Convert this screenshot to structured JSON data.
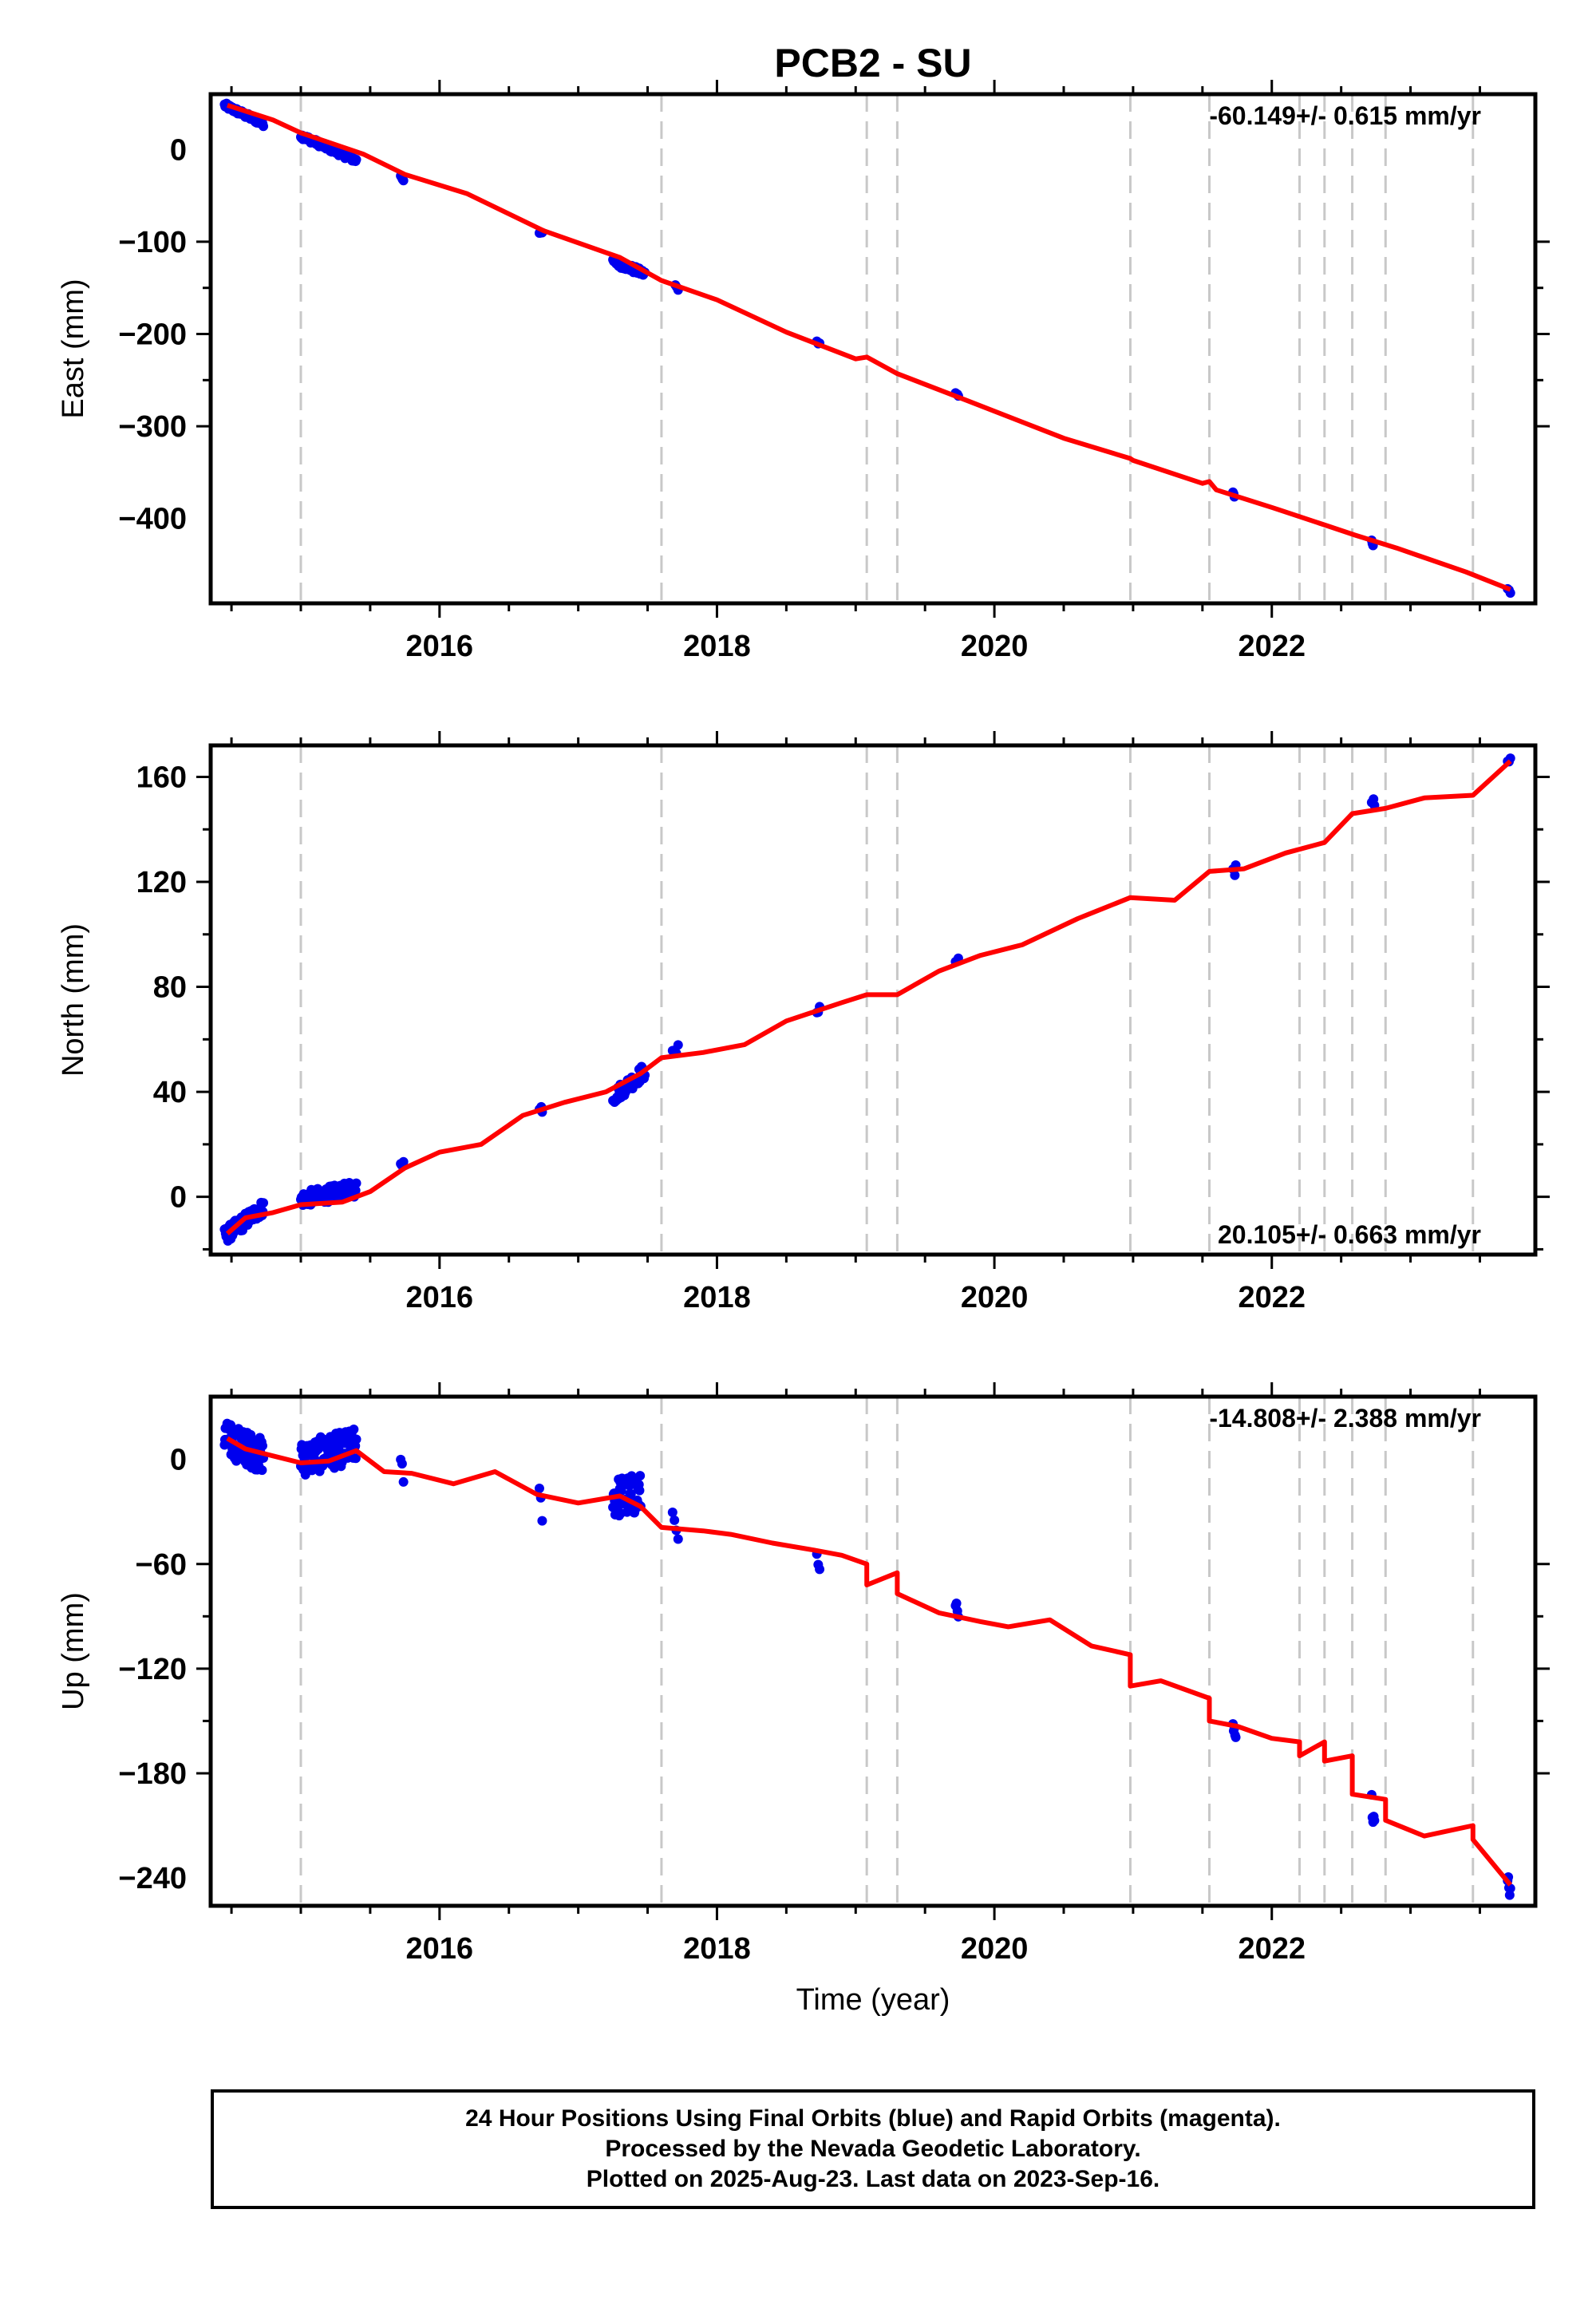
{
  "chart_data": {
    "title": "PCB2 - SU",
    "colors": {
      "data": "#0000ee",
      "model": "#ff0000",
      "events": "#c8c8c8",
      "frame": "#000000"
    },
    "x_axis": {
      "label": "Time (year)",
      "range": [
        2014.35,
        2023.9
      ],
      "ticks": [
        2016,
        2018,
        2020,
        2022
      ],
      "tick_labels": [
        "2016",
        "2018",
        "2020",
        "2022"
      ]
    },
    "event_lines": [
      2015.0,
      2017.6,
      2019.08,
      2019.3,
      2020.98,
      2021.55,
      2022.2,
      2022.38,
      2022.58,
      2022.82,
      2023.45
    ],
    "panels": [
      {
        "type": "scatter",
        "component": "east",
        "ylabel": "East (mm)",
        "ylim": [
          -492,
          60
        ],
        "yticks": [
          0,
          -100,
          -200,
          -300,
          -400
        ],
        "ytick_labels": [
          "0",
          "−100",
          "−200",
          "−300",
          "−400"
        ],
        "rate_label": "-60.149+/- 0.615 mm/yr",
        "rate_position": "top-right",
        "model": {
          "x": [
            2014.47,
            2014.8,
            2015.0,
            2015.45,
            2015.75,
            2016.2,
            2016.75,
            2017.3,
            2017.6,
            2018.0,
            2018.5,
            2019.0,
            2019.08,
            2019.3,
            2019.8,
            2020.5,
            2020.98,
            2021.0,
            2021.5,
            2021.55,
            2021.6,
            2022.0,
            2022.4,
            2022.6,
            2022.9,
            2023.4,
            2023.72
          ],
          "y": [
            48,
            32,
            18,
            -5,
            -27,
            -48,
            -88,
            -117,
            -142,
            -163,
            -198,
            -227,
            -225,
            -243,
            -272,
            -313,
            -335,
            -337,
            -362,
            -360,
            -369,
            -388,
            -408,
            -418,
            -432,
            -458,
            -477
          ]
        },
        "observations": [
          {
            "t_start": 2014.45,
            "t_end": 2014.73,
            "y_start": 48,
            "y_end": 28,
            "n": 60,
            "spread": 3
          },
          {
            "t_start": 2015.0,
            "t_end": 2015.4,
            "y_start": 15,
            "y_end": -12,
            "n": 80,
            "spread": 3
          },
          {
            "t_start": 2015.72,
            "t_end": 2015.74,
            "y_start": -28,
            "y_end": -33,
            "n": 4,
            "spread": 2
          },
          {
            "t_start": 2016.72,
            "t_end": 2016.74,
            "y_start": -89,
            "y_end": -92,
            "n": 3,
            "spread": 2
          },
          {
            "t_start": 2017.25,
            "t_end": 2017.48,
            "y_start": -121,
            "y_end": -135,
            "n": 40,
            "spread": 4
          },
          {
            "t_start": 2017.7,
            "t_end": 2017.72,
            "y_start": -147,
            "y_end": -153,
            "n": 3,
            "spread": 2
          },
          {
            "t_start": 2018.72,
            "t_end": 2018.74,
            "y_start": -207,
            "y_end": -211,
            "n": 3,
            "spread": 2
          },
          {
            "t_start": 2019.72,
            "t_end": 2019.74,
            "y_start": -262,
            "y_end": -267,
            "n": 4,
            "spread": 2
          },
          {
            "t_start": 2021.72,
            "t_end": 2021.73,
            "y_start": -371,
            "y_end": -377,
            "n": 3,
            "spread": 2
          },
          {
            "t_start": 2022.72,
            "t_end": 2022.73,
            "y_start": -424,
            "y_end": -429,
            "n": 3,
            "spread": 2
          },
          {
            "t_start": 2023.7,
            "t_end": 2023.72,
            "y_start": -476,
            "y_end": -480,
            "n": 3,
            "spread": 2
          }
        ]
      },
      {
        "type": "scatter",
        "component": "north",
        "ylabel": "North (mm)",
        "ylim": [
          -22,
          172
        ],
        "yticks": [
          0,
          40,
          80,
          120,
          160
        ],
        "ytick_labels": [
          "0",
          "40",
          "80",
          "120",
          "160"
        ],
        "rate_label": "20.105+/- 0.663 mm/yr",
        "rate_position": "bottom-right",
        "model": {
          "x": [
            2014.47,
            2014.6,
            2014.8,
            2015.0,
            2015.3,
            2015.5,
            2015.75,
            2016.0,
            2016.3,
            2016.6,
            2016.9,
            2017.2,
            2017.45,
            2017.6,
            2017.9,
            2018.2,
            2018.5,
            2018.9,
            2019.08,
            2019.3,
            2019.6,
            2019.9,
            2020.2,
            2020.6,
            2020.98,
            2021.3,
            2021.55,
            2021.8,
            2022.1,
            2022.38,
            2022.58,
            2022.82,
            2023.1,
            2023.45,
            2023.72
          ],
          "y": [
            -14,
            -8,
            -6,
            -3,
            -2,
            2,
            11,
            17,
            20,
            31,
            36,
            40,
            47,
            53,
            55,
            58,
            67,
            74,
            77,
            77,
            86,
            92,
            96,
            106,
            114,
            113,
            124,
            125,
            131,
            135,
            146,
            148,
            152,
            153,
            166
          ]
        },
        "observations": [
          {
            "t_start": 2014.45,
            "t_end": 2014.73,
            "y_start": -15,
            "y_end": -4,
            "n": 70,
            "spread": 3
          },
          {
            "t_start": 2015.0,
            "t_end": 2015.4,
            "y_start": -1,
            "y_end": 3,
            "n": 80,
            "spread": 3
          },
          {
            "t_start": 2015.72,
            "t_end": 2015.74,
            "y_start": 12,
            "y_end": 15,
            "n": 4,
            "spread": 2
          },
          {
            "t_start": 2016.72,
            "t_end": 2016.74,
            "y_start": 33,
            "y_end": 34,
            "n": 4,
            "spread": 2
          },
          {
            "t_start": 2017.25,
            "t_end": 2017.48,
            "y_start": 38,
            "y_end": 48,
            "n": 40,
            "spread": 3
          },
          {
            "t_start": 2017.68,
            "t_end": 2017.72,
            "y_start": 54,
            "y_end": 56,
            "n": 4,
            "spread": 2
          },
          {
            "t_start": 2018.72,
            "t_end": 2018.74,
            "y_start": 71,
            "y_end": 73,
            "n": 3,
            "spread": 2
          },
          {
            "t_start": 2019.72,
            "t_end": 2019.74,
            "y_start": 89,
            "y_end": 91,
            "n": 4,
            "spread": 2
          },
          {
            "t_start": 2021.72,
            "t_end": 2021.74,
            "y_start": 124,
            "y_end": 126,
            "n": 4,
            "spread": 3
          },
          {
            "t_start": 2022.72,
            "t_end": 2022.74,
            "y_start": 148,
            "y_end": 150,
            "n": 4,
            "spread": 3
          },
          {
            "t_start": 2023.7,
            "t_end": 2023.72,
            "y_start": 166,
            "y_end": 167,
            "n": 3,
            "spread": 1
          }
        ]
      },
      {
        "type": "scatter",
        "component": "up",
        "ylabel": "Up (mm)",
        "ylim": [
          -256,
          36
        ],
        "yticks": [
          0,
          -60,
          -120,
          -180,
          -240
        ],
        "ytick_labels": [
          "0",
          "−60",
          "−120",
          "−180",
          "−240"
        ],
        "rate_label": "-14.808+/- 2.388 mm/yr",
        "rate_position": "top-right",
        "model": {
          "x": [
            2014.47,
            2014.6,
            2014.8,
            2015.0,
            2015.2,
            2015.4,
            2015.6,
            2015.8,
            2016.1,
            2016.4,
            2016.7,
            2017.0,
            2017.3,
            2017.45,
            2017.6,
            2017.9,
            2018.1,
            2018.4,
            2018.7,
            2018.9,
            2019.08,
            2019.08,
            2019.3,
            2019.3,
            2019.6,
            2019.9,
            2020.1,
            2020.4,
            2020.7,
            2020.98,
            2020.98,
            2021.2,
            2021.55,
            2021.55,
            2021.75,
            2022.0,
            2022.2,
            2022.2,
            2022.38,
            2022.38,
            2022.58,
            2022.58,
            2022.82,
            2022.82,
            2023.1,
            2023.45,
            2023.45,
            2023.72
          ],
          "y": [
            12,
            6,
            2,
            -2,
            -1,
            5,
            -7,
            -8,
            -14,
            -7,
            -20,
            -25,
            -21,
            -27,
            -39,
            -41,
            -43,
            -48,
            -52,
            -55,
            -60,
            -72,
            -65,
            -77,
            -88,
            -93,
            -96,
            -92,
            -107,
            -112,
            -130,
            -127,
            -137,
            -150,
            -153,
            -160,
            -162,
            -170,
            -162,
            -173,
            -170,
            -192,
            -195,
            -207,
            -216,
            -210,
            -218,
            -244
          ]
        },
        "observations": [
          {
            "t_start": 2014.45,
            "t_end": 2014.73,
            "y_start": 12,
            "y_end": 2,
            "n": 90,
            "spread": 10
          },
          {
            "t_start": 2015.0,
            "t_end": 2015.4,
            "y_start": 0,
            "y_end": 8,
            "n": 110,
            "spread": 10
          },
          {
            "t_start": 2015.72,
            "t_end": 2015.74,
            "y_start": -5,
            "y_end": -10,
            "n": 3,
            "spread": 6
          },
          {
            "t_start": 2016.72,
            "t_end": 2016.74,
            "y_start": -20,
            "y_end": -30,
            "n": 3,
            "spread": 6
          },
          {
            "t_start": 2017.25,
            "t_end": 2017.45,
            "y_start": -22,
            "y_end": -20,
            "n": 50,
            "spread": 12
          },
          {
            "t_start": 2017.68,
            "t_end": 2017.72,
            "y_start": -32,
            "y_end": -40,
            "n": 4,
            "spread": 6
          },
          {
            "t_start": 2018.72,
            "t_end": 2018.74,
            "y_start": -59,
            "y_end": -66,
            "n": 3,
            "spread": 5
          },
          {
            "t_start": 2019.72,
            "t_end": 2019.74,
            "y_start": -83,
            "y_end": -94,
            "n": 4,
            "spread": 5
          },
          {
            "t_start": 2021.72,
            "t_end": 2021.74,
            "y_start": -154,
            "y_end": -162,
            "n": 5,
            "spread": 5
          },
          {
            "t_start": 2022.72,
            "t_end": 2022.74,
            "y_start": -197,
            "y_end": -207,
            "n": 5,
            "spread": 6
          },
          {
            "t_start": 2023.7,
            "t_end": 2023.72,
            "y_start": -237,
            "y_end": -249,
            "n": 5,
            "spread": 5
          }
        ]
      }
    ]
  },
  "footer": {
    "line1": "24 Hour Positions Using Final Orbits (blue) and Rapid Orbits (magenta).",
    "line2": "Processed by the Nevada Geodetic Laboratory.",
    "line3": "Plotted on 2025-Aug-23. Last data on 2023-Sep-16."
  }
}
